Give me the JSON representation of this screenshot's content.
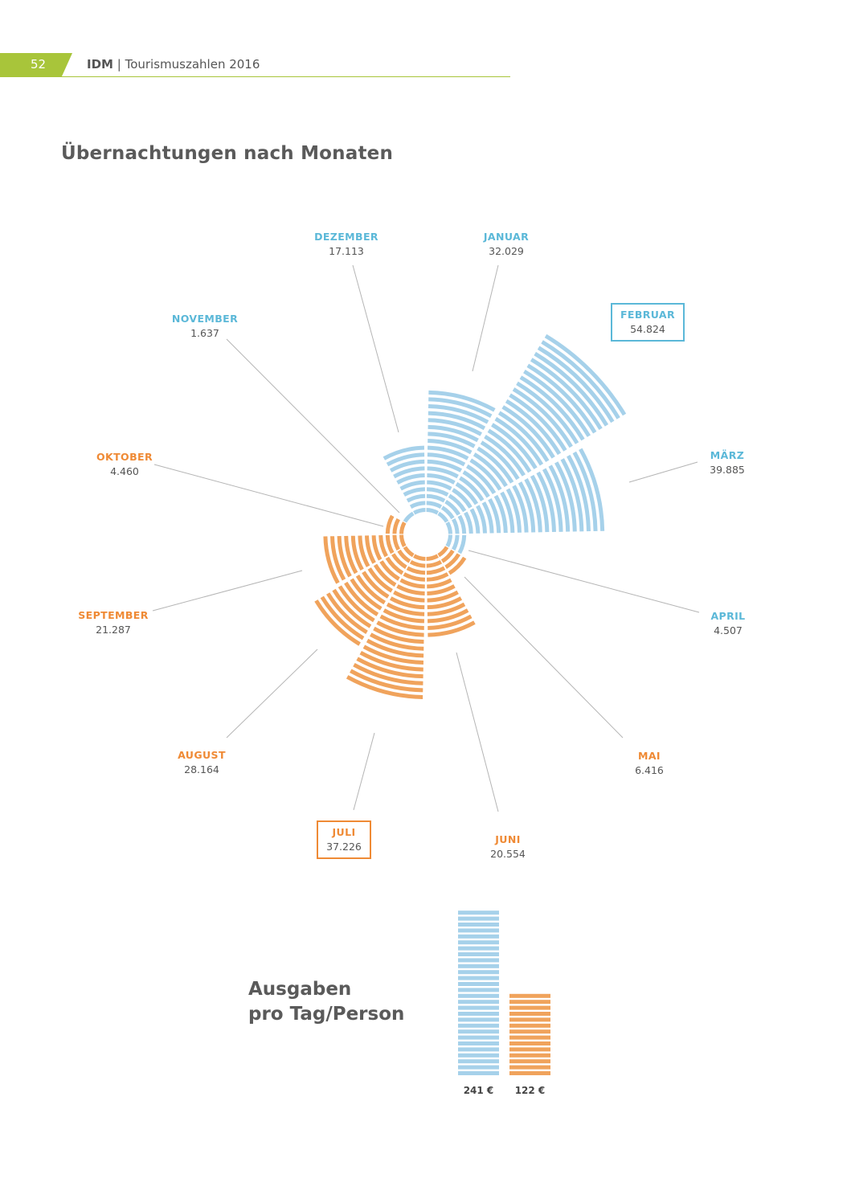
{
  "header": {
    "page_number": "52",
    "brand": "IDM",
    "separator": "|",
    "subtitle": "Tourismuszahlen 2016"
  },
  "colors": {
    "accent_green": "#a8c53a",
    "winter_blue": "#a6d1ea",
    "summer_orange": "#f0a35c",
    "label_blue": "#5bb8d8",
    "label_orange": "#ef8a35",
    "leader_line": "#b5b5b5"
  },
  "chart_data": [
    {
      "type": "polar-bar",
      "title": "Übernachtungen nach Monaten",
      "series": [
        {
          "categories": [
            "JANUAR",
            "FEBRUAR",
            "MÄRZ",
            "APRIL",
            "MAI",
            "JUNI",
            "JULI",
            "AUGUST",
            "SEPTEMBER",
            "OKTOBER",
            "NOVEMBER",
            "DEZEMBER"
          ],
          "values": [
            32029,
            54824,
            39885,
            4507,
            6416,
            20554,
            37226,
            28164,
            21287,
            4460,
            1637,
            17113
          ],
          "labels": [
            "32.029",
            "54.824",
            "39.885",
            "4.507",
            "6.416",
            "20.554",
            "37.226",
            "28.164",
            "21.287",
            "4.460",
            "1.637",
            "17.113"
          ],
          "colors": [
            "blue",
            "blue",
            "blue",
            "blue",
            "orange",
            "orange",
            "orange",
            "orange",
            "orange",
            "orange",
            "blue",
            "blue"
          ]
        }
      ],
      "highlighted": [
        "FEBRUAR",
        "JULI"
      ]
    },
    {
      "type": "bar",
      "title": "Ausgaben pro Tag/Person",
      "title_lines": [
        "Ausgaben",
        "pro Tag/Person"
      ],
      "categories": [
        "",
        ""
      ],
      "values": [
        241,
        122
      ],
      "labels": [
        "241 €",
        "122 €"
      ],
      "colors": [
        "blue",
        "orange"
      ]
    }
  ]
}
